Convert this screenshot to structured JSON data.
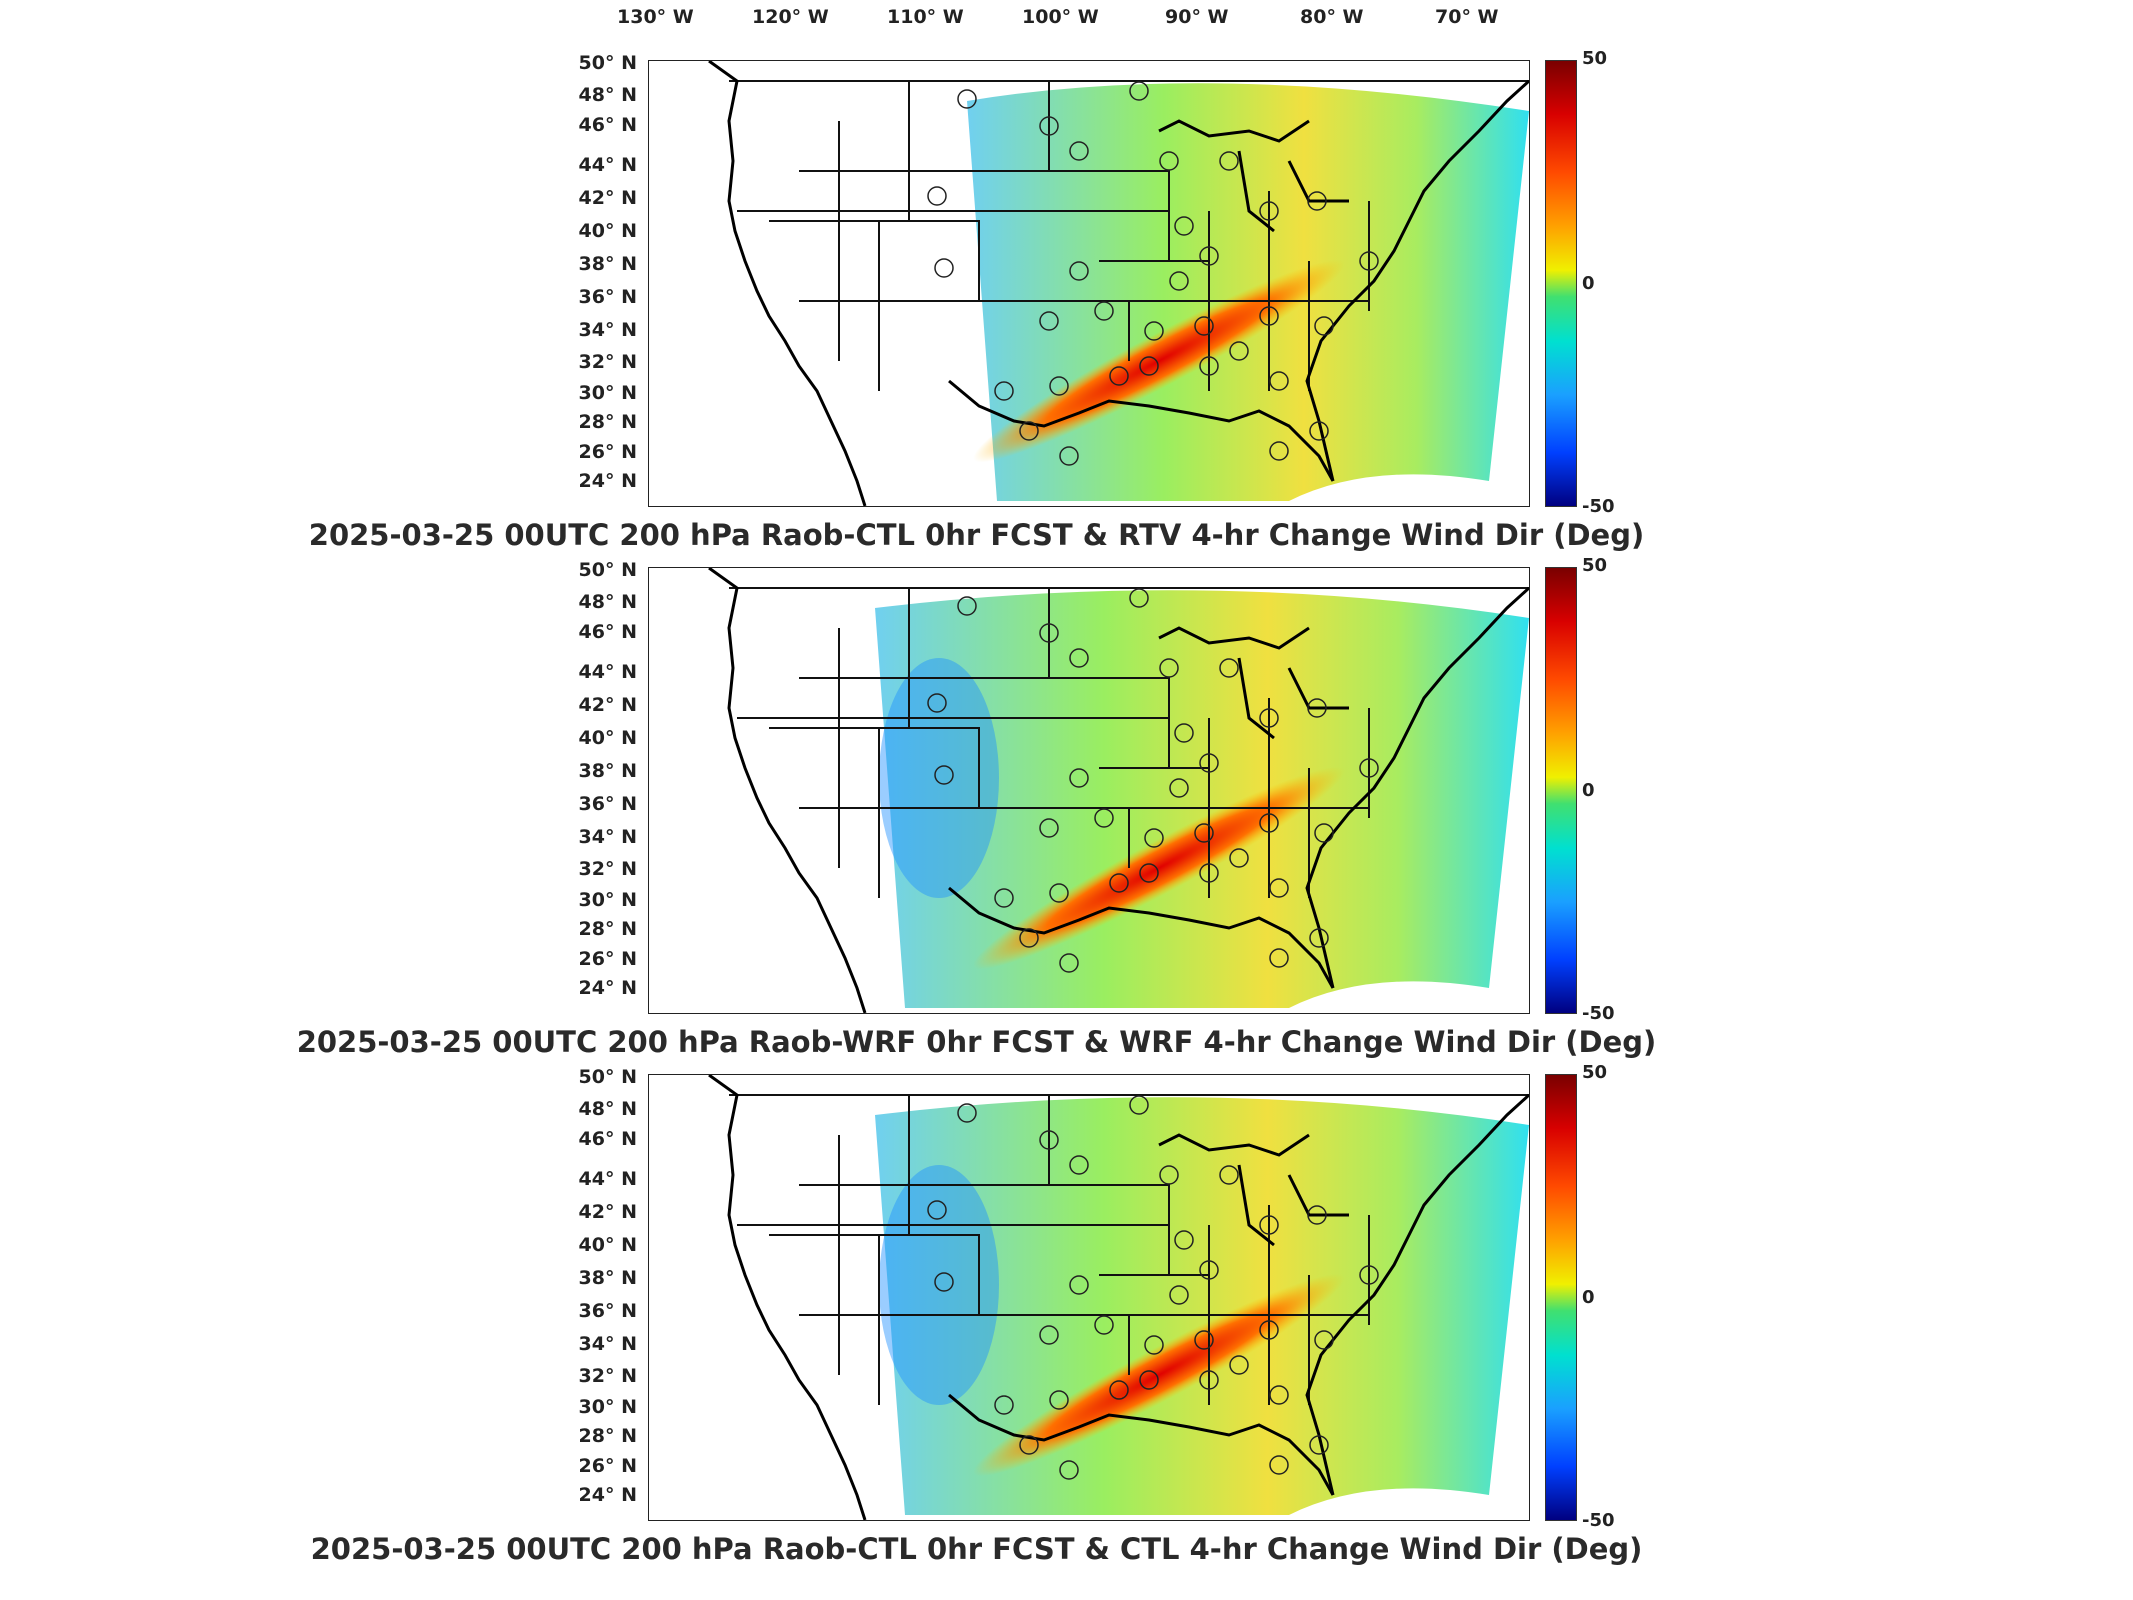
{
  "longitude_labels": [
    "130° W",
    "120° W",
    "110° W",
    "100° W",
    "90° W",
    "80° W",
    "70° W"
  ],
  "latitude_labels": [
    "50° N",
    "48° N",
    "46° N",
    "44° N",
    "42° N",
    "40° N",
    "38° N",
    "36° N",
    "34° N",
    "32° N",
    "30° N",
    "28° N",
    "26° N",
    "24° N"
  ],
  "colorbar": {
    "max_label": "50",
    "mid_label": "0",
    "min_label": "-50",
    "colors": [
      "#7a0000",
      "#d80000",
      "#ff4a00",
      "#ffa000",
      "#f0f000",
      "#40e070",
      "#00e0d0",
      "#1aa0ff",
      "#0040ff",
      "#000080"
    ]
  },
  "panels": [
    {
      "title": "2025-03-25 00UTC 200 hPa Raob-CTL 0hr FCST & RTV 4-hr Change Wind Dir (Deg)"
    },
    {
      "title": "2025-03-25 00UTC 200 hPa Raob-WRF 0hr FCST & WRF 4-hr Change Wind Dir (Deg)"
    },
    {
      "title": "2025-03-25 00UTC 200 hPa Raob-CTL 0hr FCST & CTL 4-hr Change Wind Dir (Deg)"
    }
  ]
}
